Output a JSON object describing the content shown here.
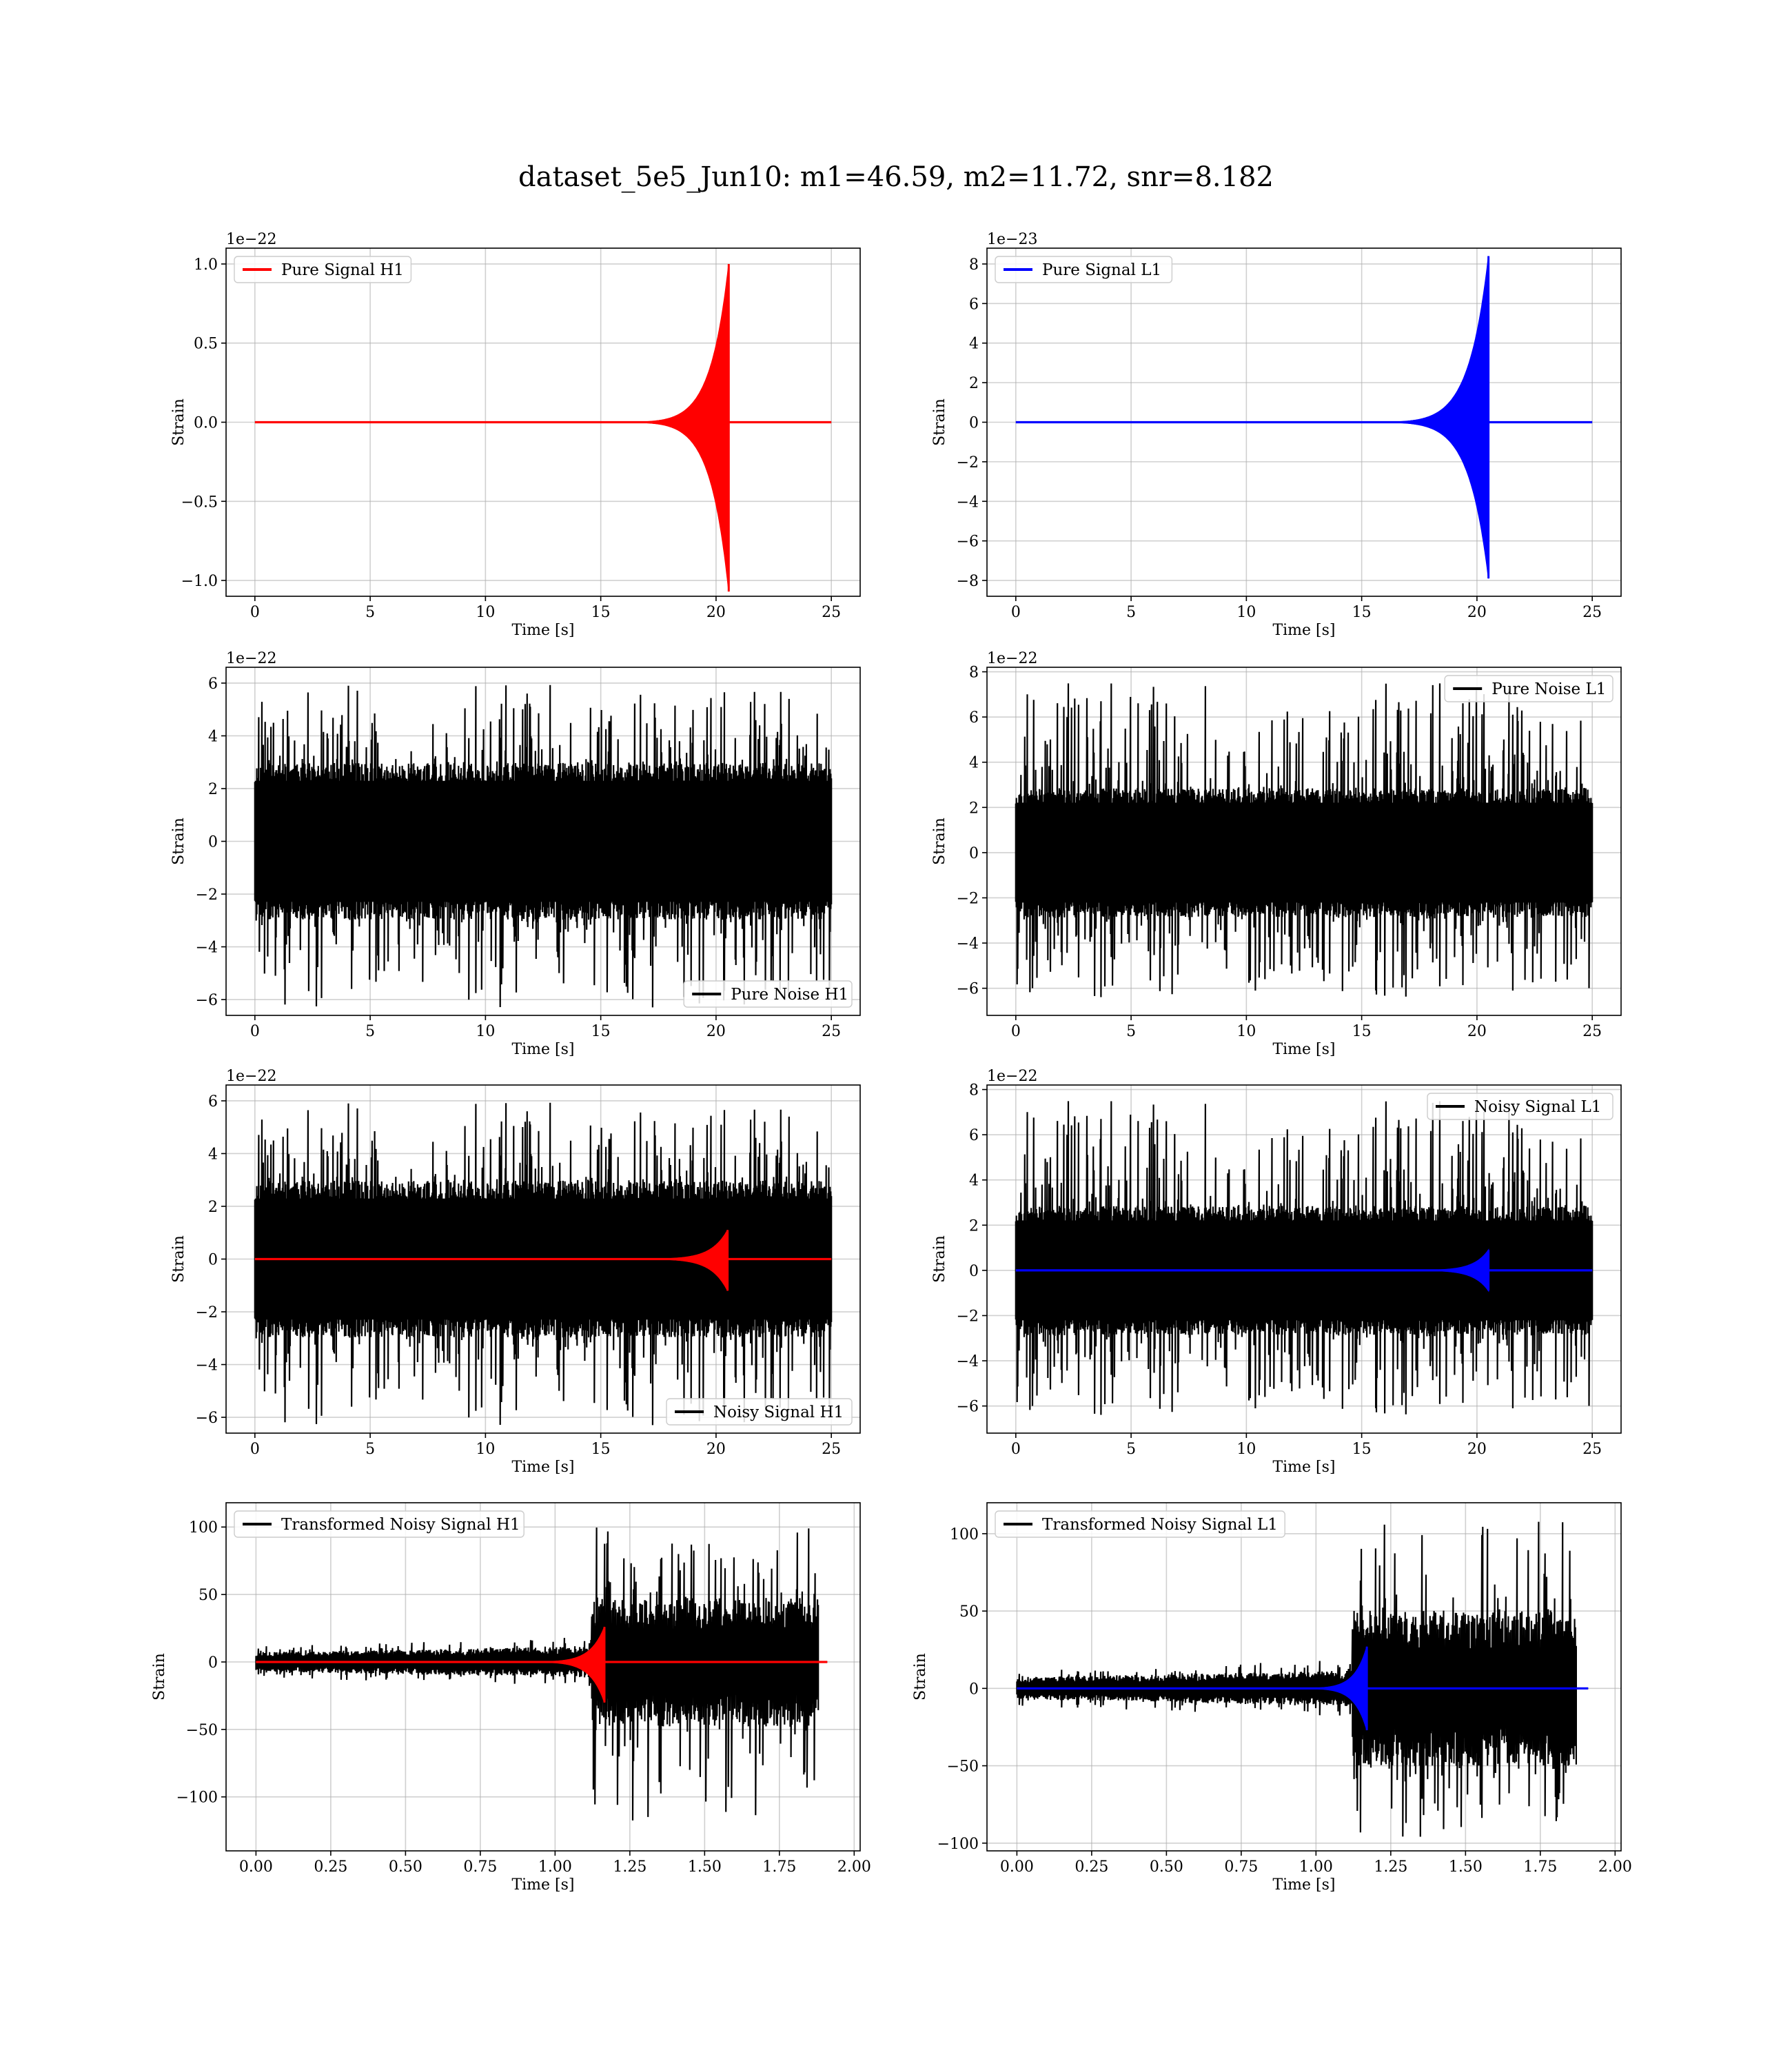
{
  "figure": {
    "suptitle": "dataset_5e5_Jun10: m1=46.59, m2=11.72, snr=8.182"
  },
  "chart_data": [
    {
      "type": "line",
      "title": "",
      "xlabel": "Time [s]",
      "ylabel": "Strain",
      "offset_text": "1e−22",
      "xlim": [
        -1.25,
        26.25
      ],
      "ylim": [
        -1.1,
        1.1
      ],
      "xticks": [
        0,
        5,
        10,
        15,
        20,
        25
      ],
      "yticks": [
        -1.0,
        -0.5,
        0.0,
        0.5,
        1.0
      ],
      "ytick_labels": [
        "−1.0",
        "−0.5",
        "0.0",
        "0.5",
        "1.0"
      ],
      "grid": true,
      "legend": "upper-left",
      "series": [
        {
          "name": "Pure Signal H1",
          "color": "#ff0000",
          "kind": "chirp",
          "x_start": 0,
          "x_end": 25,
          "x_merger": 20.55,
          "x_onset": 14.5,
          "peak_pos": 1.0,
          "peak_neg": -1.07
        }
      ]
    },
    {
      "type": "line",
      "title": "",
      "xlabel": "Time [s]",
      "ylabel": "Strain",
      "offset_text": "1e−23",
      "xlim": [
        -1.25,
        26.25
      ],
      "ylim": [
        -8.8,
        8.8
      ],
      "xticks": [
        0,
        5,
        10,
        15,
        20,
        25
      ],
      "yticks": [
        -8,
        -6,
        -4,
        -2,
        0,
        2,
        4,
        6,
        8
      ],
      "ytick_labels": [
        "−8",
        "−6",
        "−4",
        "−2",
        "0",
        "2",
        "4",
        "6",
        "8"
      ],
      "grid": true,
      "legend": "upper-left",
      "series": [
        {
          "name": "Pure Signal L1",
          "color": "#0000ff",
          "kind": "chirp",
          "x_start": 0,
          "x_end": 25,
          "x_merger": 20.5,
          "x_onset": 14.0,
          "peak_pos": 8.4,
          "peak_neg": -7.9
        }
      ]
    },
    {
      "type": "line",
      "title": "",
      "xlabel": "Time [s]",
      "ylabel": "Strain",
      "offset_text": "1e−22",
      "xlim": [
        -1.25,
        26.25
      ],
      "ylim": [
        -6.6,
        6.6
      ],
      "xticks": [
        0,
        5,
        10,
        15,
        20,
        25
      ],
      "yticks": [
        -6,
        -4,
        -2,
        0,
        2,
        4,
        6
      ],
      "ytick_labels": [
        "−6",
        "−4",
        "−2",
        "0",
        "2",
        "4",
        "6"
      ],
      "grid": true,
      "legend": "lower-right",
      "series": [
        {
          "name": "Pure Noise H1",
          "color": "#000000",
          "kind": "noise",
          "x_start": 0,
          "x_end": 25,
          "band": 2.7,
          "peak_pos": 6.0,
          "peak_neg": -6.3,
          "seed": 11
        }
      ]
    },
    {
      "type": "line",
      "title": "",
      "xlabel": "Time [s]",
      "ylabel": "Strain",
      "offset_text": "1e−22",
      "xlim": [
        -1.25,
        26.25
      ],
      "ylim": [
        -7.2,
        8.2
      ],
      "xticks": [
        0,
        5,
        10,
        15,
        20,
        25
      ],
      "yticks": [
        -6,
        -4,
        -2,
        0,
        2,
        4,
        6,
        8
      ],
      "ytick_labels": [
        "−6",
        "−4",
        "−2",
        "0",
        "2",
        "4",
        "6",
        "8"
      ],
      "grid": true,
      "legend": "upper-right",
      "series": [
        {
          "name": "Pure Noise L1",
          "color": "#000000",
          "kind": "noise",
          "x_start": 0,
          "x_end": 25,
          "band": 2.6,
          "peak_pos": 7.5,
          "peak_neg": -6.4,
          "seed": 23
        }
      ]
    },
    {
      "type": "line",
      "title": "",
      "xlabel": "Time [s]",
      "ylabel": "Strain",
      "offset_text": "1e−22",
      "xlim": [
        -1.25,
        26.25
      ],
      "ylim": [
        -6.6,
        6.6
      ],
      "xticks": [
        0,
        5,
        10,
        15,
        20,
        25
      ],
      "yticks": [
        -6,
        -4,
        -2,
        0,
        2,
        4,
        6
      ],
      "ytick_labels": [
        "−6",
        "−4",
        "−2",
        "0",
        "2",
        "4",
        "6"
      ],
      "grid": true,
      "legend": "lower-right",
      "series": [
        {
          "name": "Noisy Signal H1",
          "color": "#000000",
          "kind": "noise",
          "x_start": 0,
          "x_end": 25,
          "band": 2.7,
          "peak_pos": 6.0,
          "peak_neg": -6.3,
          "seed": 11
        },
        {
          "name": "",
          "color": "#ff0000",
          "kind": "chirp",
          "x_start": 0,
          "x_end": 25,
          "x_merger": 20.5,
          "x_onset": 15.0,
          "peak_pos": 1.1,
          "peak_neg": -1.2
        }
      ]
    },
    {
      "type": "line",
      "title": "",
      "xlabel": "Time [s]",
      "ylabel": "Strain",
      "offset_text": "1e−22",
      "xlim": [
        -1.25,
        26.25
      ],
      "ylim": [
        -7.2,
        8.2
      ],
      "xticks": [
        0,
        5,
        10,
        15,
        20,
        25
      ],
      "yticks": [
        -6,
        -4,
        -2,
        0,
        2,
        4,
        6,
        8
      ],
      "ytick_labels": [
        "−6",
        "−4",
        "−2",
        "0",
        "2",
        "4",
        "6",
        "8"
      ],
      "grid": true,
      "legend": "upper-right",
      "series": [
        {
          "name": "Noisy Signal L1",
          "color": "#000000",
          "kind": "noise",
          "x_start": 0,
          "x_end": 25,
          "band": 2.6,
          "peak_pos": 7.5,
          "peak_neg": -6.4,
          "seed": 23
        },
        {
          "name": "",
          "color": "#0000ff",
          "kind": "chirp",
          "x_start": 0,
          "x_end": 25,
          "x_merger": 20.5,
          "x_onset": 15.5,
          "peak_pos": 0.9,
          "peak_neg": -0.9
        }
      ]
    },
    {
      "type": "line",
      "title": "",
      "xlabel": "Time [s]",
      "ylabel": "Strain",
      "offset_text": "",
      "xlim": [
        -0.1,
        2.02
      ],
      "ylim": [
        -140,
        118
      ],
      "xticks": [
        0.0,
        0.25,
        0.5,
        0.75,
        1.0,
        1.25,
        1.5,
        1.75,
        2.0
      ],
      "xtick_labels": [
        "0.00",
        "0.25",
        "0.50",
        "0.75",
        "1.00",
        "1.25",
        "1.50",
        "1.75",
        "2.00"
      ],
      "yticks": [
        -100,
        -50,
        0,
        50,
        100
      ],
      "ytick_labels": [
        "−100",
        "−50",
        "0",
        "50",
        "100"
      ],
      "grid": true,
      "legend": "upper-left",
      "series": [
        {
          "name": "Transformed Noisy Signal H1",
          "color": "#000000",
          "kind": "transformed",
          "x_start": 0,
          "x_end": 1.88,
          "x_tail_end": 1.91,
          "x_jump": 1.12,
          "pre_band": 6,
          "post_band": 40,
          "peak_pos": 104,
          "peak_neg": -128,
          "seed": 37
        },
        {
          "name": "",
          "color": "#ff0000",
          "kind": "chirp",
          "x_start": 0,
          "x_end": 1.91,
          "x_merger": 1.165,
          "x_onset": 0.8,
          "peak_pos": 26,
          "peak_neg": -30
        }
      ]
    },
    {
      "type": "line",
      "title": "",
      "xlabel": "Time [s]",
      "ylabel": "Strain",
      "offset_text": "",
      "xlim": [
        -0.1,
        2.02
      ],
      "ylim": [
        -105,
        120
      ],
      "xticks": [
        0.0,
        0.25,
        0.5,
        0.75,
        1.0,
        1.25,
        1.5,
        1.75,
        2.0
      ],
      "xtick_labels": [
        "0.00",
        "0.25",
        "0.50",
        "0.75",
        "1.00",
        "1.25",
        "1.50",
        "1.75",
        "2.00"
      ],
      "yticks": [
        -100,
        -50,
        0,
        50,
        100
      ],
      "ytick_labels": [
        "−100",
        "−50",
        "0",
        "50",
        "100"
      ],
      "grid": true,
      "legend": "upper-left",
      "series": [
        {
          "name": "Transformed Noisy Signal L1",
          "color": "#000000",
          "kind": "transformed",
          "x_start": 0,
          "x_end": 1.87,
          "x_tail_end": 1.91,
          "x_jump": 1.12,
          "pre_band": 6,
          "post_band": 42,
          "peak_pos": 110,
          "peak_neg": -99,
          "seed": 53
        },
        {
          "name": "",
          "color": "#0000ff",
          "kind": "chirp",
          "x_start": 0,
          "x_end": 1.91,
          "x_merger": 1.17,
          "x_onset": 0.85,
          "peak_pos": 27,
          "peak_neg": -27
        }
      ]
    }
  ]
}
